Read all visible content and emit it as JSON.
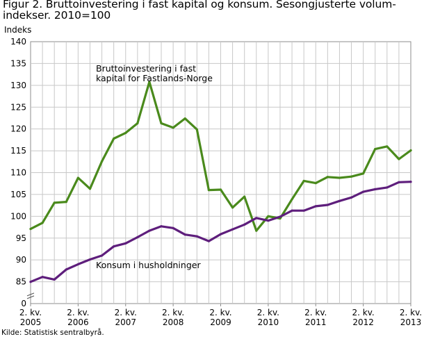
{
  "title": "Figur 2. Bruttoinvestering i fast kapital og konsum. Sesongjusterte volum-indekser. 2010=100",
  "source": "Kilde: Statistisk sentralbyrå.",
  "chart_data": {
    "type": "line",
    "title": "Figur 2. Bruttoinvestering i fast kapital og konsum. Sesongjusterte volum-indekser. 2010=100",
    "ylabel": "Indeks",
    "xlabel": "",
    "ylim": [
      0,
      140
    ],
    "yticks": [
      0,
      85,
      90,
      95,
      100,
      105,
      110,
      115,
      120,
      125,
      130,
      135,
      140
    ],
    "grid": true,
    "legend": "none (inline labels)",
    "x": [
      "2005Q2",
      "2005Q3",
      "2005Q4",
      "2006Q1",
      "2006Q2",
      "2006Q3",
      "2006Q4",
      "2007Q1",
      "2007Q2",
      "2007Q3",
      "2007Q4",
      "2008Q1",
      "2008Q2",
      "2008Q3",
      "2008Q4",
      "2009Q1",
      "2009Q2",
      "2009Q3",
      "2009Q4",
      "2010Q1",
      "2010Q2",
      "2010Q3",
      "2010Q4",
      "2011Q1",
      "2011Q2",
      "2011Q3",
      "2011Q4",
      "2012Q1",
      "2012Q2",
      "2012Q3",
      "2012Q4",
      "2013Q1",
      "2013Q2"
    ],
    "xtick_labels": [
      {
        "line1": "2. kv.",
        "line2": "2005"
      },
      {
        "line1": "2. kv.",
        "line2": "2006"
      },
      {
        "line1": "2. kv.",
        "line2": "2007"
      },
      {
        "line1": "2. kv.",
        "line2": "2008"
      },
      {
        "line1": "2. kv.",
        "line2": "2009"
      },
      {
        "line1": "2. kv.",
        "line2": "2010"
      },
      {
        "line1": "2. kv.",
        "line2": "2011"
      },
      {
        "line1": "2. kv.",
        "line2": "2012"
      },
      {
        "line1": "2. kv.",
        "line2": "2013"
      }
    ],
    "series": [
      {
        "name": "Bruttoinvestering i fast kapital for Fastlands-Norge",
        "label_lines": [
          "Bruttoinvestering i fast",
          "kapital for Fastlands-Norge"
        ],
        "color": "#4a8a1c",
        "values": [
          97.1,
          98.5,
          103.1,
          103.3,
          108.8,
          106.3,
          112.6,
          117.8,
          119.1,
          121.3,
          130.8,
          121.3,
          120.3,
          122.4,
          119.9,
          106.0,
          106.1,
          102.0,
          104.5,
          96.7,
          100.0,
          99.5,
          103.9,
          108.1,
          107.6,
          109.0,
          108.8,
          109.1,
          109.8,
          115.4,
          116.0,
          113.1,
          115.1
        ]
      },
      {
        "name": "Konsum i husholdninger",
        "label_lines": [
          "Konsum i husholdninger"
        ],
        "color": "#5e1e7c",
        "values": [
          84.6,
          86.1,
          85.5,
          87.8,
          89.0,
          90.1,
          91.0,
          93.1,
          93.8,
          95.2,
          96.7,
          97.7,
          97.3,
          95.8,
          95.4,
          94.3,
          95.9,
          97.0,
          98.1,
          99.6,
          99.0,
          99.9,
          101.3,
          101.3,
          102.3,
          102.6,
          103.5,
          104.3,
          105.6,
          106.2,
          106.6,
          107.8,
          107.9
        ]
      }
    ]
  }
}
